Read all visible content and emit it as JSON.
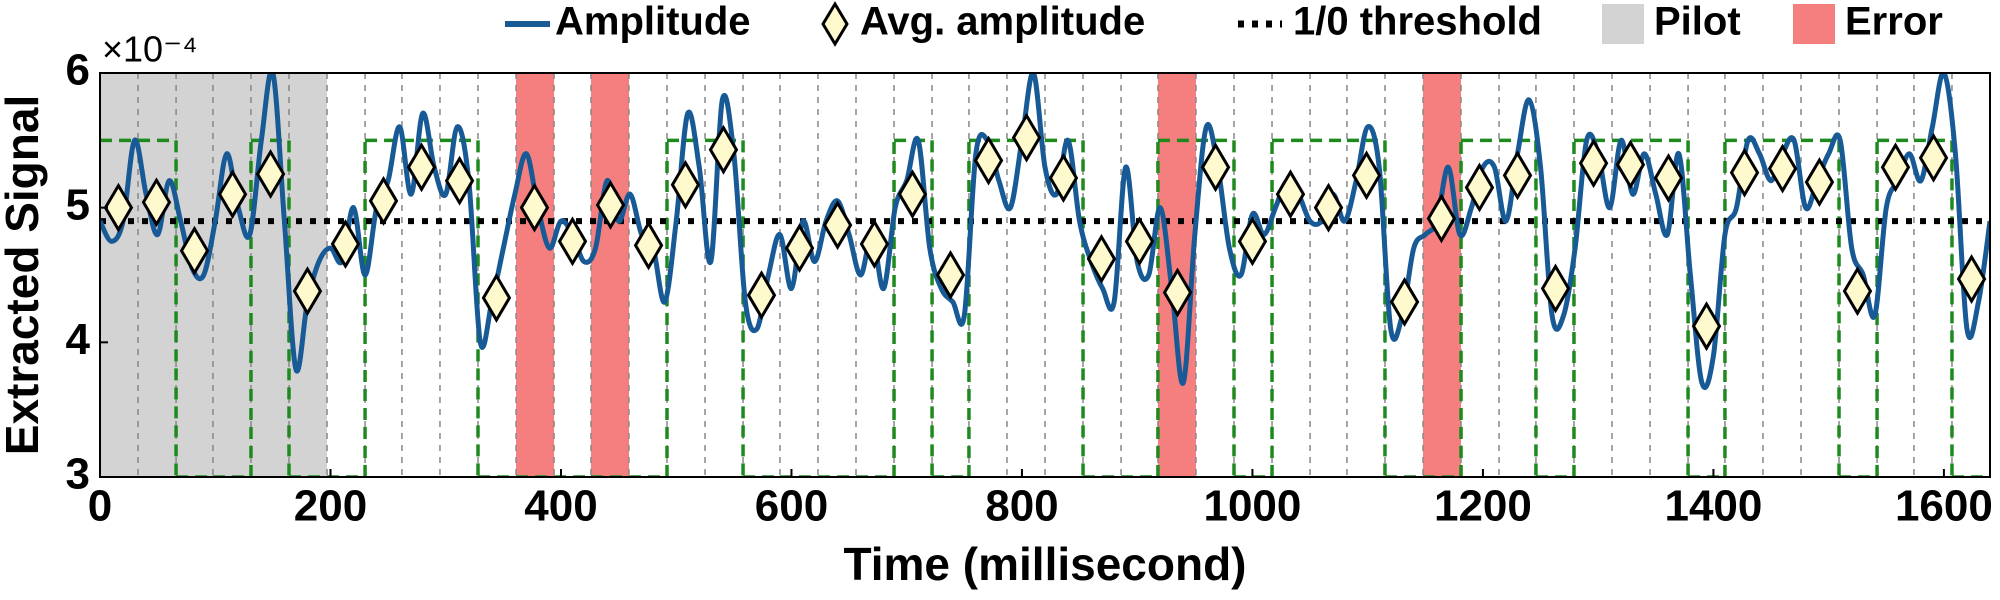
{
  "chart_data": {
    "type": "line",
    "xlabel": "Time (millisecond)",
    "ylabel": "Extracted Signal",
    "y_multiplier": "×10⁻⁴",
    "xlim": [
      0,
      1640
    ],
    "ylim": [
      3,
      6
    ],
    "xticks": [
      0,
      200,
      400,
      600,
      800,
      1000,
      1200,
      1400,
      1600
    ],
    "yticks": [
      3,
      4,
      5,
      6
    ],
    "legend": "top",
    "series": [
      {
        "name": "Amplitude",
        "color": "#185a96",
        "x": [
          0,
          10,
          20,
          30,
          40,
          50,
          60,
          70,
          80,
          90,
          100,
          110,
          120,
          130,
          140,
          150,
          160,
          170,
          180,
          190,
          200,
          210,
          220,
          230,
          240,
          250,
          260,
          270,
          280,
          290,
          300,
          310,
          320,
          330,
          340,
          350,
          360,
          370,
          380,
          390,
          400,
          410,
          420,
          430,
          440,
          450,
          460,
          470,
          480,
          490,
          500,
          510,
          520,
          530,
          540,
          550,
          560,
          570,
          580,
          590,
          600,
          610,
          620,
          630,
          640,
          650,
          660,
          670,
          680,
          690,
          700,
          710,
          720,
          730,
          740,
          750,
          760,
          770,
          780,
          790,
          800,
          810,
          820,
          830,
          840,
          850,
          860,
          870,
          880,
          890,
          900,
          910,
          920,
          930,
          940,
          950,
          960,
          970,
          980,
          990,
          1000,
          1010,
          1020,
          1030,
          1040,
          1050,
          1060,
          1070,
          1080,
          1090,
          1100,
          1110,
          1120,
          1130,
          1140,
          1150,
          1160,
          1170,
          1180,
          1190,
          1200,
          1210,
          1220,
          1230,
          1240,
          1250,
          1260,
          1270,
          1280,
          1290,
          1300,
          1310,
          1320,
          1330,
          1340,
          1350,
          1360,
          1370,
          1380,
          1390,
          1400,
          1410,
          1420,
          1430,
          1440,
          1450,
          1460,
          1470,
          1480,
          1490,
          1500,
          1510,
          1520,
          1530,
          1540,
          1550,
          1560,
          1570,
          1580,
          1590,
          1600,
          1610,
          1620,
          1630,
          1640
        ],
        "values": [
          4.9,
          4.75,
          4.9,
          5.5,
          5.1,
          4.8,
          5.2,
          4.9,
          4.55,
          4.5,
          4.9,
          5.4,
          5.0,
          4.8,
          5.5,
          6.0,
          4.9,
          3.8,
          4.3,
          4.6,
          4.7,
          4.6,
          5.0,
          4.5,
          5.0,
          5.2,
          5.6,
          5.1,
          5.7,
          5.3,
          5.1,
          5.6,
          5.2,
          4.0,
          4.3,
          4.7,
          5.1,
          5.4,
          5.0,
          4.7,
          4.9,
          4.8,
          4.6,
          4.7,
          5.2,
          4.9,
          5.1,
          4.8,
          4.7,
          4.3,
          4.9,
          5.7,
          5.3,
          4.6,
          5.8,
          5.4,
          4.3,
          4.1,
          4.5,
          4.8,
          4.4,
          4.9,
          4.6,
          4.9,
          5.05,
          4.8,
          4.5,
          4.8,
          4.4,
          5.0,
          5.2,
          5.5,
          4.7,
          4.4,
          4.3,
          4.2,
          5.4,
          5.5,
          5.2,
          5.0,
          5.5,
          6.0,
          5.3,
          5.1,
          5.5,
          4.9,
          4.6,
          4.4,
          4.3,
          5.3,
          4.6,
          4.5,
          5.0,
          4.4,
          3.7,
          4.8,
          5.6,
          5.3,
          4.7,
          4.5,
          4.95,
          4.8,
          5.0,
          5.2,
          5.1,
          4.9,
          4.9,
          5.1,
          4.9,
          5.2,
          5.6,
          5.3,
          4.1,
          4.2,
          4.7,
          4.8,
          4.9,
          5.3,
          4.8,
          5.0,
          5.3,
          5.3,
          4.9,
          5.4,
          5.8,
          5.3,
          4.2,
          4.2,
          4.7,
          5.5,
          5.4,
          5.0,
          5.5,
          5.1,
          5.4,
          5.1,
          4.8,
          5.4,
          4.5,
          3.7,
          3.9,
          4.8,
          5.0,
          5.5,
          5.4,
          5.2,
          5.4,
          5.5,
          5.0,
          5.2,
          5.4,
          5.5,
          4.7,
          4.5,
          4.2,
          5.0,
          5.2,
          5.4,
          5.2,
          5.6,
          6.0,
          5.4,
          4.1,
          4.3,
          4.9
        ]
      },
      {
        "name": "Avg. amplitude",
        "color": "#fffacd",
        "x": [
          16,
          49,
          82,
          115,
          148,
          180,
          213,
          246,
          279,
          312,
          344,
          377,
          410,
          443,
          476,
          508,
          541,
          574,
          607,
          640,
          672,
          705,
          738,
          771,
          804,
          836,
          869,
          902,
          935,
          968,
          1000,
          1033,
          1066,
          1099,
          1132,
          1164,
          1197,
          1230,
          1263,
          1296,
          1328,
          1361,
          1394,
          1427,
          1460,
          1492,
          1525,
          1558,
          1591,
          1624
        ],
        "values": [
          5.0,
          5.04,
          4.68,
          5.1,
          5.25,
          4.38,
          4.73,
          5.05,
          5.3,
          5.2,
          4.33,
          5.0,
          4.75,
          5.02,
          4.72,
          5.17,
          5.43,
          4.35,
          4.7,
          4.87,
          4.73,
          5.1,
          4.5,
          5.35,
          5.52,
          5.22,
          4.62,
          4.75,
          4.37,
          5.3,
          4.75,
          5.1,
          5.0,
          5.24,
          4.3,
          4.92,
          5.15,
          5.24,
          4.4,
          5.33,
          5.32,
          5.22,
          4.12,
          5.26,
          5.29,
          5.19,
          4.38,
          5.3,
          5.37,
          4.47
        ]
      },
      {
        "name": "1/0 threshold",
        "color": "#000000",
        "value": 4.9
      }
    ],
    "spans": [
      {
        "name": "Pilot",
        "color": "#d3d3d3",
        "ranges": [
          [
            0,
            197
          ]
        ]
      },
      {
        "name": "Error",
        "color": "#f57f7f",
        "ranges": [
          [
            361,
            394
          ],
          [
            426,
            459
          ],
          [
            918,
            951
          ],
          [
            1148,
            1181
          ]
        ]
      }
    ],
    "reference": {
      "color": "#1e8a1e",
      "edges": [
        0,
        33,
        66,
        98,
        131,
        164,
        197,
        230,
        262,
        295,
        328,
        361,
        394,
        426,
        459,
        492,
        525,
        558,
        590,
        623,
        656,
        689,
        722,
        754,
        787,
        820,
        853,
        886,
        918,
        951,
        984,
        1017,
        1050,
        1082,
        1115,
        1148,
        1181,
        1214,
        1246,
        1279,
        1312,
        1345,
        1378,
        1410,
        1443,
        1476,
        1509,
        1542,
        1574,
        1607,
        1640
      ],
      "values": [
        5.5,
        5.5,
        3,
        3,
        5.5,
        3,
        3,
        5.5,
        5.5,
        5.5,
        3,
        3,
        3,
        3,
        3,
        5.5,
        5.5,
        3,
        3,
        3,
        3,
        5.5,
        3,
        5.5,
        5.5,
        5.5,
        3,
        3,
        5.5,
        5.5,
        3,
        5.5,
        5.5,
        5.5,
        3,
        3,
        5.5,
        5.5,
        3,
        5.5,
        5.5,
        5.5,
        3,
        5.5,
        5.5,
        5.5,
        3,
        5.5,
        5.5,
        3
      ]
    }
  }
}
